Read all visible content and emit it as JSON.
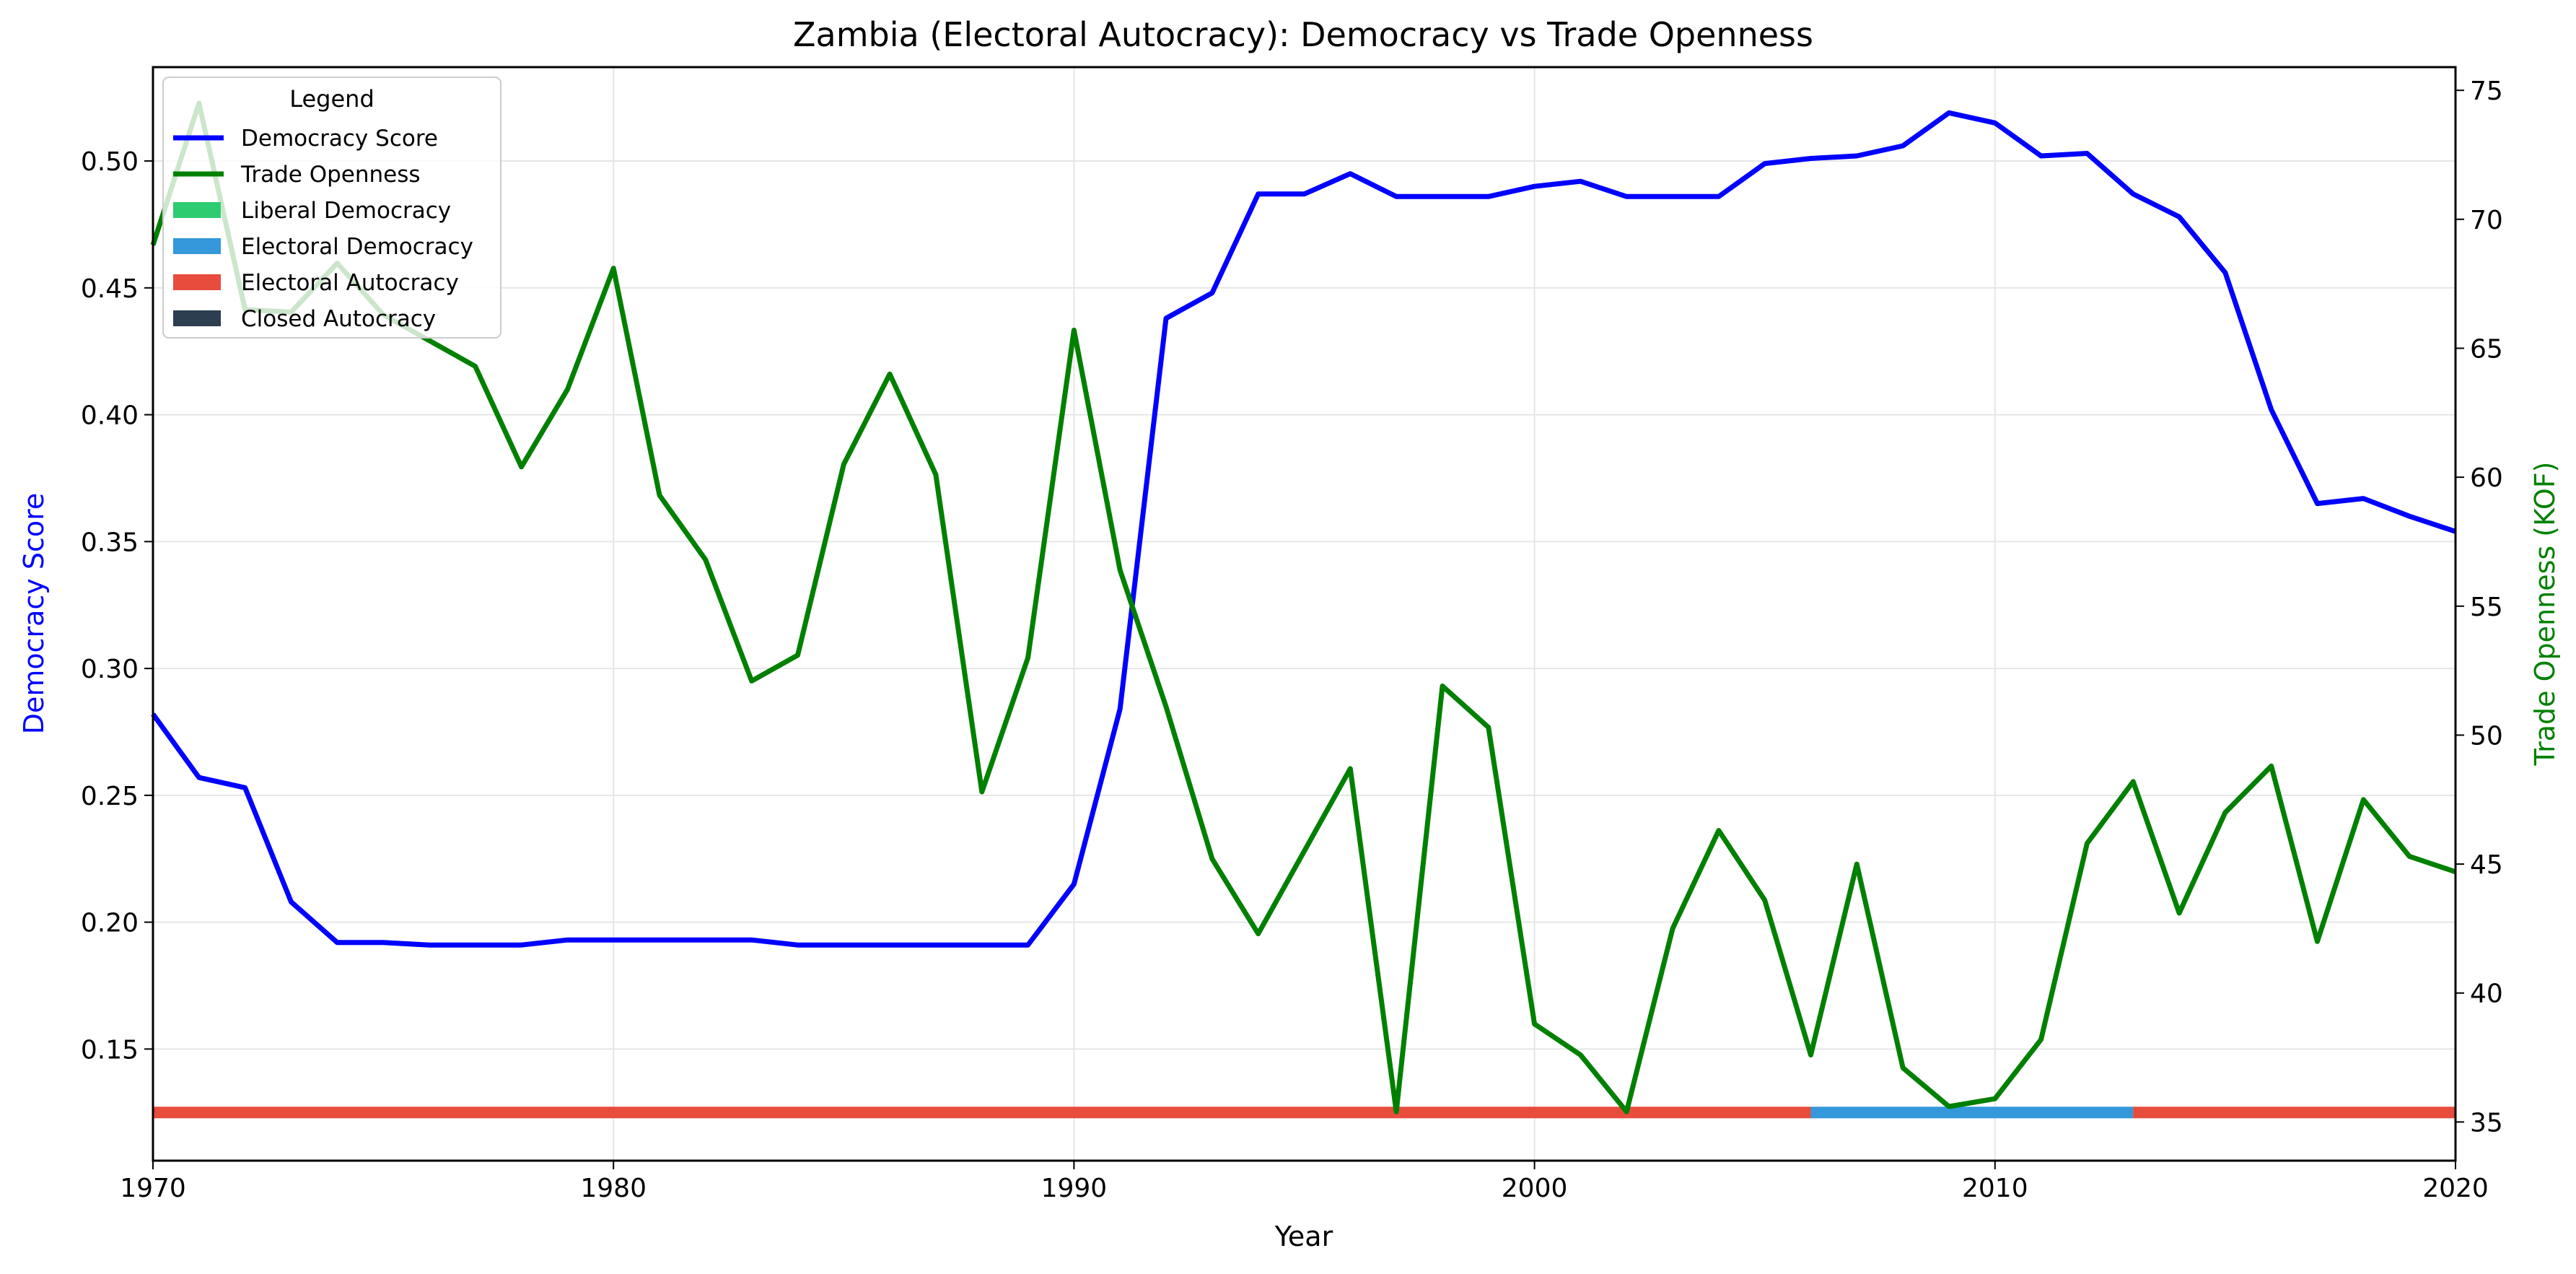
{
  "chart_data": {
    "type": "line",
    "title": "Zambia (Electoral Autocracy): Democracy vs Trade Openness",
    "xlabel": "Year",
    "ylabel": "Democracy Score",
    "ylabel_right": "Trade Openness (KOF)",
    "xlim": [
      1970,
      2020
    ],
    "ylim": [
      0.106,
      0.537
    ],
    "ylim_right": [
      33.5,
      75.9
    ],
    "xticks": [
      "1970",
      "1980",
      "1990",
      "2000",
      "2010",
      "2020"
    ],
    "yticks": [
      "0.15",
      "0.20",
      "0.25",
      "0.30",
      "0.35",
      "0.40",
      "0.45",
      "0.50"
    ],
    "yticks_right": [
      "35",
      "40",
      "45",
      "50",
      "55",
      "60",
      "65",
      "70",
      "75"
    ],
    "grid": true,
    "legend": {
      "title": "Legend",
      "placement": "top-left",
      "entries": [
        {
          "label": "Democracy Score",
          "kind": "line",
          "color": "#0000ff"
        },
        {
          "label": "Trade Openness",
          "kind": "line",
          "color": "#008000"
        },
        {
          "label": "Liberal Democracy",
          "kind": "patch",
          "color": "#2ecc71"
        },
        {
          "label": "Electoral Democracy",
          "kind": "patch",
          "color": "#3498db"
        },
        {
          "label": "Electoral Autocracy",
          "kind": "patch",
          "color": "#e74c3c"
        },
        {
          "label": "Closed Autocracy",
          "kind": "patch",
          "color": "#2c3e50"
        }
      ]
    },
    "x": [
      1970,
      1971,
      1972,
      1973,
      1974,
      1975,
      1976,
      1977,
      1978,
      1979,
      1980,
      1981,
      1982,
      1983,
      1984,
      1985,
      1986,
      1987,
      1988,
      1989,
      1990,
      1991,
      1992,
      1993,
      1994,
      1995,
      1996,
      1997,
      1998,
      1999,
      2000,
      2001,
      2002,
      2003,
      2004,
      2005,
      2006,
      2007,
      2008,
      2009,
      2010,
      2011,
      2012,
      2013,
      2014,
      2015,
      2016,
      2017,
      2018,
      2019,
      2020
    ],
    "series": [
      {
        "name": "Democracy Score",
        "axis": "left",
        "color": "#0000ff",
        "values": [
          0.282,
          0.257,
          0.253,
          0.208,
          0.192,
          0.192,
          0.191,
          0.191,
          0.191,
          0.193,
          0.193,
          0.193,
          0.193,
          0.193,
          0.191,
          0.191,
          0.191,
          0.191,
          0.191,
          0.191,
          0.215,
          0.284,
          0.438,
          0.448,
          0.487,
          0.487,
          0.495,
          0.486,
          0.486,
          0.486,
          0.49,
          0.492,
          0.486,
          0.486,
          0.486,
          0.499,
          0.501,
          0.502,
          0.506,
          0.519,
          0.515,
          0.502,
          0.503,
          0.487,
          0.478,
          0.456,
          0.402,
          0.365,
          0.367,
          0.36,
          0.354
        ]
      },
      {
        "name": "Trade Openness",
        "axis": "right",
        "color": "#008000",
        "values": [
          69.0,
          74.5,
          66.5,
          66.4,
          68.3,
          66.3,
          65.3,
          64.3,
          60.4,
          63.4,
          68.1,
          59.3,
          56.8,
          52.1,
          53.1,
          60.5,
          64.0,
          60.1,
          47.8,
          53.0,
          65.7,
          56.4,
          51.1,
          45.2,
          42.3,
          45.5,
          48.7,
          35.4,
          51.9,
          50.3,
          38.8,
          37.6,
          35.4,
          42.5,
          46.3,
          43.6,
          37.6,
          45.0,
          37.1,
          35.6,
          35.9,
          38.2,
          45.8,
          48.2,
          43.1,
          47.0,
          48.8,
          42.0,
          47.5,
          45.3,
          44.7
        ]
      }
    ],
    "regime_bar": {
      "y": 0.125,
      "segments": [
        {
          "start": 1970,
          "end": 2006,
          "regime": "Electoral Autocracy",
          "color": "#e74c3c"
        },
        {
          "start": 2006,
          "end": 2013,
          "regime": "Electoral Democracy",
          "color": "#3498db"
        },
        {
          "start": 2013,
          "end": 2020,
          "regime": "Electoral Autocracy",
          "color": "#e74c3c"
        }
      ]
    }
  }
}
